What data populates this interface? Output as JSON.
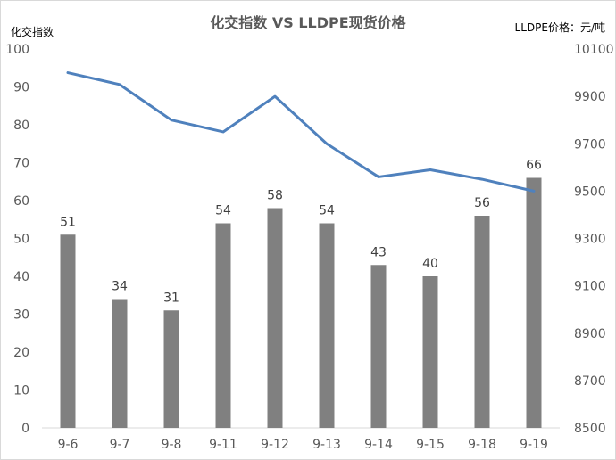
{
  "chart_data": {
    "type": "bar+line",
    "title": "化交指数 VS LLDPE现货价格",
    "left_axis_label": "化交指数",
    "right_axis_label": "LLDPE价格：元/吨",
    "categories": [
      "9-6",
      "9-7",
      "9-8",
      "9-11",
      "9-12",
      "9-13",
      "9-14",
      "9-15",
      "9-18",
      "9-19"
    ],
    "series": [
      {
        "type": "bar",
        "axis": "left",
        "values": [
          51,
          34,
          31,
          54,
          58,
          54,
          43,
          40,
          56,
          66
        ],
        "color": "#808080"
      },
      {
        "type": "line",
        "axis": "right",
        "values": [
          10000,
          9950,
          9800,
          9750,
          9900,
          9700,
          9560,
          9590,
          9550,
          9500
        ],
        "color": "#4f81bd"
      }
    ],
    "left_ylim": [
      0,
      100
    ],
    "left_ticks": [
      "0",
      "10",
      "20",
      "30",
      "40",
      "50",
      "60",
      "70",
      "80",
      "90",
      "100"
    ],
    "right_ylim": [
      8500,
      10100
    ],
    "right_ticks": [
      "8500",
      "8700",
      "8900",
      "9100",
      "9300",
      "9500",
      "9700",
      "9900",
      "10100"
    ],
    "grid": false
  }
}
